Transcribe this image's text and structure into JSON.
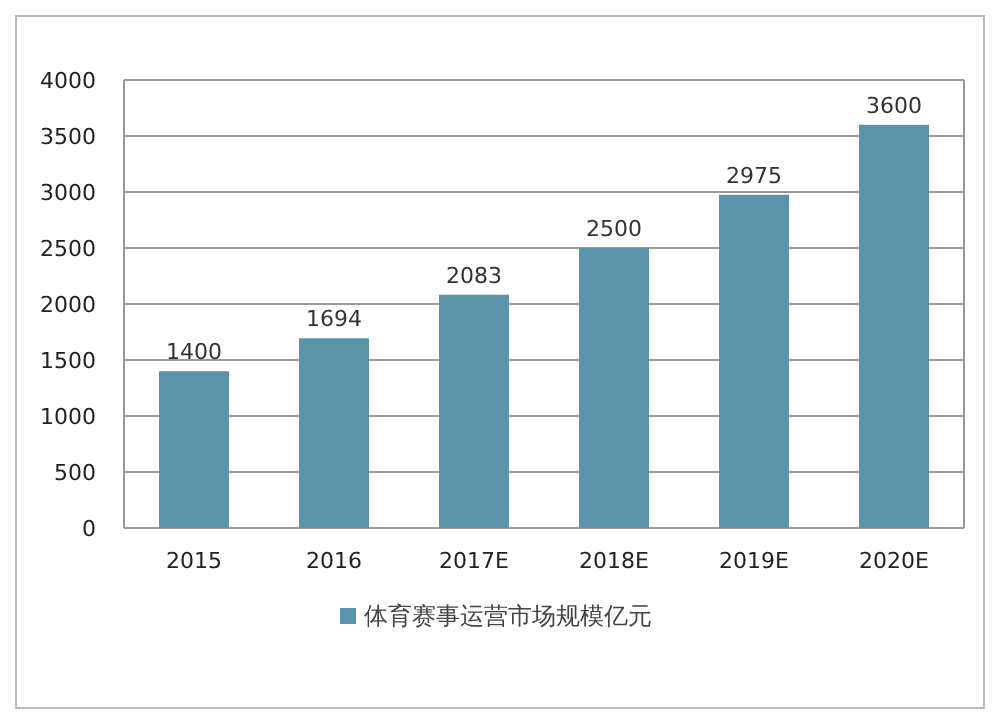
{
  "chart_data": {
    "type": "bar",
    "categories": [
      "2015",
      "2016",
      "2017E",
      "2018E",
      "2019E",
      "2020E"
    ],
    "series": [
      {
        "name": "体育赛事运营市场规模亿元",
        "color": "#5b93a8",
        "values": [
          1400,
          1694,
          2083,
          2500,
          2975,
          3600
        ]
      }
    ],
    "ylim": [
      0,
      4000
    ],
    "yticks": [
      0,
      500,
      1000,
      1500,
      2000,
      2500,
      3000,
      3500,
      4000
    ],
    "grid": "y",
    "legend": "bottom",
    "data_labels": true
  }
}
